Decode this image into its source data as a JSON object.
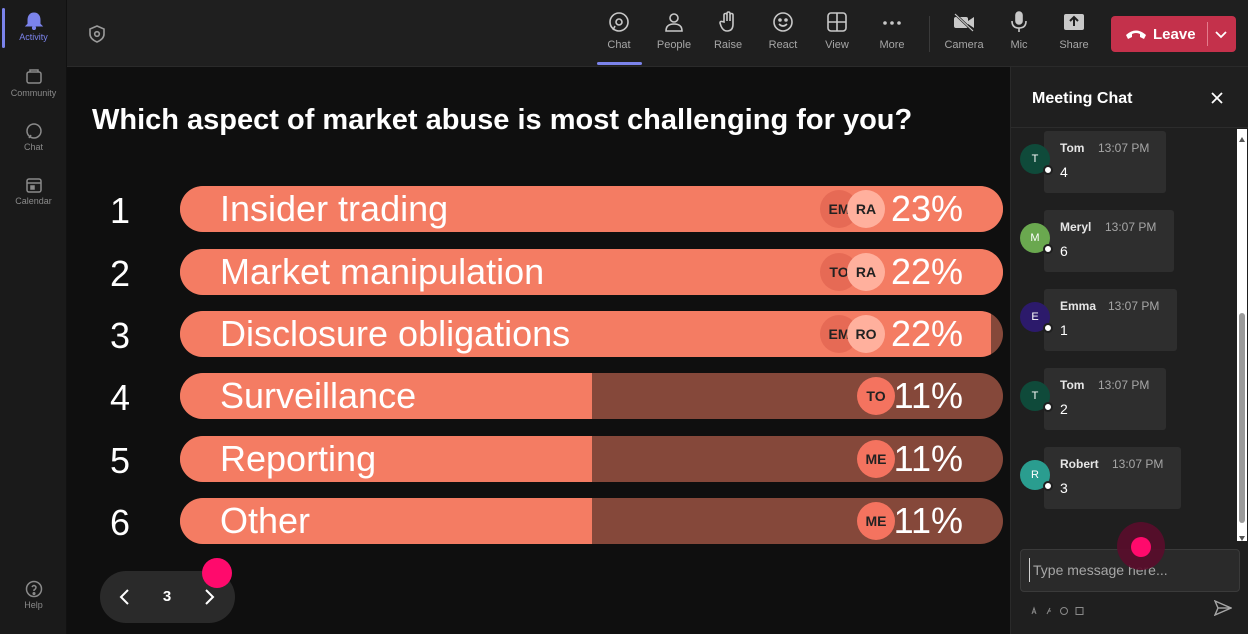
{
  "rail": {
    "items": [
      {
        "label": "Activity",
        "icon": "bell-icon"
      },
      {
        "label": "Community",
        "icon": "community-icon"
      },
      {
        "label": "Chat",
        "icon": "chat-icon"
      },
      {
        "label": "Calendar",
        "icon": "calendar-icon"
      },
      {
        "label": "Help",
        "icon": "help-icon"
      }
    ],
    "active_color": "#7b83eb"
  },
  "toolbar": {
    "buttons": [
      {
        "label": "Chat",
        "icon": "chat-icon"
      },
      {
        "label": "People",
        "icon": "people-icon"
      },
      {
        "label": "Raise",
        "icon": "hand-icon"
      },
      {
        "label": "React",
        "icon": "smiley-icon"
      },
      {
        "label": "View",
        "icon": "grid-icon"
      },
      {
        "label": "More",
        "icon": "more-icon"
      },
      {
        "label": "Camera",
        "icon": "camera-off-icon"
      },
      {
        "label": "Mic",
        "icon": "mic-icon"
      },
      {
        "label": "Share",
        "icon": "share-icon"
      }
    ],
    "leave_label": "Leave",
    "leave_color": "#c4314b"
  },
  "poll": {
    "question": "Which aspect of market abuse is most challenging for you?",
    "fill_color": "#f47c63",
    "track_color": "#85483a",
    "options": [
      {
        "number": "1",
        "label": "Insider trading",
        "percent": "23%",
        "fill_fraction": 1.0,
        "chips": [
          "EM",
          "RA"
        ]
      },
      {
        "number": "2",
        "label": "Market manipulation",
        "percent": "22%",
        "fill_fraction": 1.0,
        "chips": [
          "TO",
          "RA"
        ]
      },
      {
        "number": "3",
        "label": "Disclosure obligations",
        "percent": "22%",
        "fill_fraction": 0.985,
        "chips": [
          "EM",
          "RO"
        ]
      },
      {
        "number": "4",
        "label": "Surveillance",
        "percent": "11%",
        "fill_fraction": 0.5,
        "chips": [
          "TO"
        ]
      },
      {
        "number": "5",
        "label": "Reporting",
        "percent": "11%",
        "fill_fraction": 0.5,
        "chips": [
          "ME"
        ]
      },
      {
        "number": "6",
        "label": "Other",
        "percent": "11%",
        "fill_fraction": 0.5,
        "chips": [
          "ME"
        ]
      }
    ]
  },
  "pager": {
    "page": "3"
  },
  "chat": {
    "title": "Meeting Chat",
    "messages": [
      {
        "initial": "T",
        "name": "Tom",
        "time": "13:07 PM",
        "text": "4",
        "avatar_color": "#0f4a3a"
      },
      {
        "initial": "M",
        "name": "Meryl",
        "time": "13:07 PM",
        "text": "6",
        "avatar_color": "#6aa84f"
      },
      {
        "initial": "E",
        "name": "Emma",
        "time": "13:07 PM",
        "text": "1",
        "avatar_color": "#2c1a6b"
      },
      {
        "initial": "T",
        "name": "Tom",
        "time": "13:07 PM",
        "text": "2",
        "avatar_color": "#0f4a3a"
      },
      {
        "initial": "R",
        "name": "Robert",
        "time": "13:07 PM",
        "text": "3",
        "avatar_color": "#2a9d8f"
      }
    ],
    "compose_placeholder": "Type message here..."
  }
}
